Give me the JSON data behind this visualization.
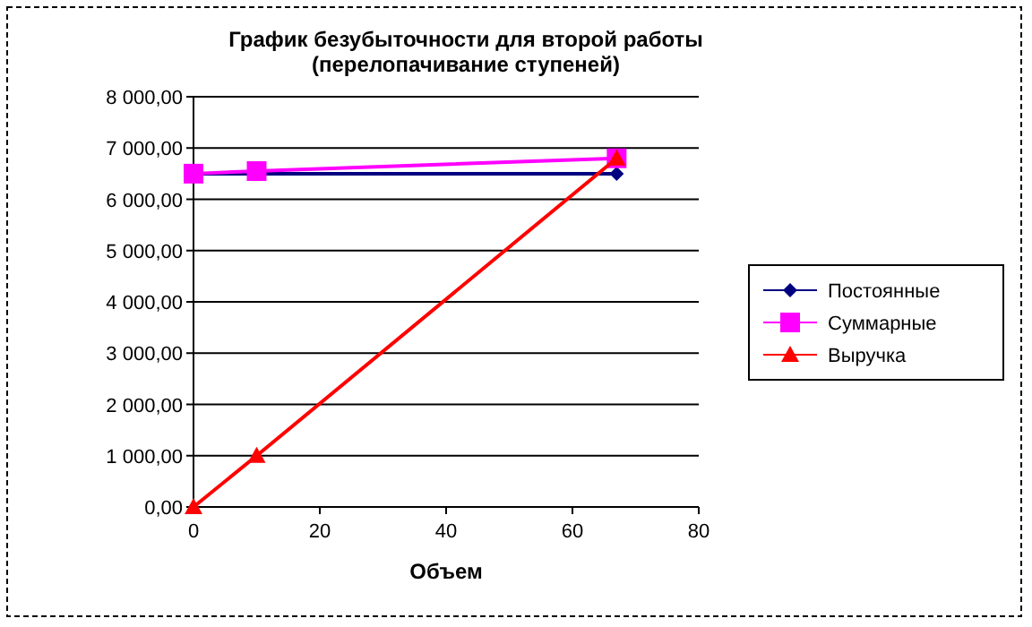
{
  "chart_data": {
    "type": "line",
    "title": "График безубыточности для второй работы\n(перелопачивание ступеней)",
    "xlabel": "Объем",
    "x": [
      0,
      10,
      67
    ],
    "series": [
      {
        "name": "Постоянные",
        "color": "#000080",
        "values": [
          6500,
          null,
          6500
        ],
        "marker": "diamond"
      },
      {
        "name": "Суммарные",
        "color": "#ff00ff",
        "values": [
          6500,
          6550,
          6800
        ],
        "marker": "square"
      },
      {
        "name": "Выручка",
        "color": "#ff0000",
        "values": [
          0,
          1000,
          6800
        ],
        "marker": "triangle"
      }
    ],
    "xlim": [
      0,
      80
    ],
    "xticks": [
      0,
      20,
      40,
      60,
      80
    ],
    "ylim": [
      0,
      8000
    ],
    "yticks": [
      {
        "value": 0,
        "label": "0,00"
      },
      {
        "value": 1000,
        "label": "1 000,00"
      },
      {
        "value": 2000,
        "label": "2 000,00"
      },
      {
        "value": 3000,
        "label": "3 000,00"
      },
      {
        "value": 4000,
        "label": "4 000,00"
      },
      {
        "value": 5000,
        "label": "5 000,00"
      },
      {
        "value": 6000,
        "label": "6 000,00"
      },
      {
        "value": 7000,
        "label": "7 000,00"
      },
      {
        "value": 8000,
        "label": "8 000,00"
      }
    ],
    "grid": "y",
    "legend": "right"
  }
}
